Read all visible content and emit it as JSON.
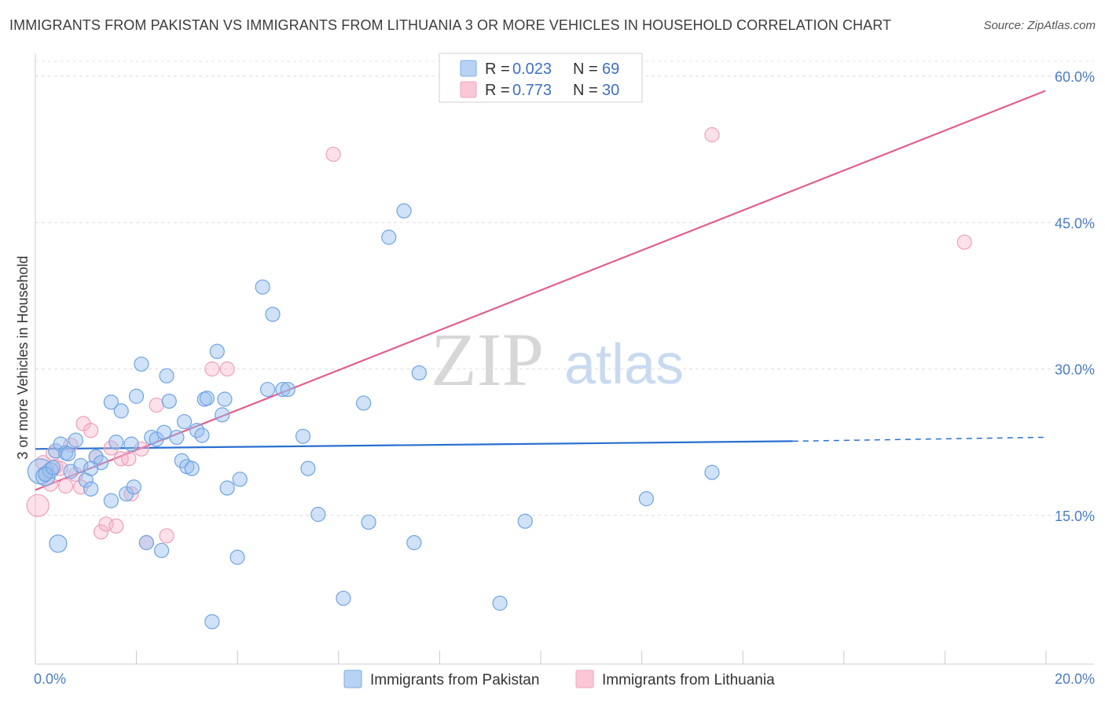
{
  "title": "IMMIGRANTS FROM PAKISTAN VS IMMIGRANTS FROM LITHUANIA 3 OR MORE VEHICLES IN HOUSEHOLD CORRELATION CHART",
  "source": "Source: ZipAtlas.com",
  "watermark": {
    "zip": "ZIP",
    "atlas": "atlas"
  },
  "legend_top": [
    {
      "r_label": "R = ",
      "r": "0.023",
      "n_label": "N = ",
      "n": "69"
    },
    {
      "r_label": "R = ",
      "r": "0.773",
      "n_label": "N = ",
      "n": "30"
    }
  ],
  "chart_data": {
    "type": "scatter",
    "title": "IMMIGRANTS FROM PAKISTAN VS IMMIGRANTS FROM LITHUANIA 3 OR MORE VEHICLES IN HOUSEHOLD CORRELATION CHART",
    "xlabel": "",
    "ylabel": "3 or more Vehicles in Household",
    "xlim": [
      0,
      20
    ],
    "ylim": [
      0,
      60
    ],
    "x_tick_labels": [
      "0.0%",
      "20.0%"
    ],
    "y_ticks": [
      15,
      30,
      45,
      60
    ],
    "y_tick_labels": [
      "15.0%",
      "30.0%",
      "45.0%",
      "60.0%"
    ],
    "legend_position": "bottom-center",
    "colors": {
      "pakistan": "#7aaee8",
      "lithuania": "#f2a5bd",
      "pakistan_line": "#2a6fd1",
      "lithuania_line": "#e0608f"
    },
    "series": [
      {
        "name": "Immigrants from Pakistan",
        "R": 0.023,
        "N": 69,
        "trend": {
          "x0": 0.0,
          "y0": 21.8,
          "x1": 15.0,
          "y1": 22.6,
          "dashed_to_x": 20.0,
          "dashed_to_y": 23.0
        },
        "points": [
          [
            0.1,
            19.5,
            16
          ],
          [
            0.2,
            19.0,
            12
          ],
          [
            0.3,
            19.6,
            10
          ],
          [
            0.4,
            21.6,
            9
          ],
          [
            0.5,
            22.3,
            9
          ],
          [
            0.6,
            21.4,
            9
          ],
          [
            0.7,
            19.5,
            9
          ],
          [
            0.8,
            22.7,
            9
          ],
          [
            0.9,
            20.1,
            9
          ],
          [
            1.0,
            18.6,
            9
          ],
          [
            1.1,
            17.7,
            9
          ],
          [
            1.2,
            21.0,
            9
          ],
          [
            1.3,
            20.4,
            9
          ],
          [
            1.5,
            16.5,
            9
          ],
          [
            1.5,
            26.6,
            9
          ],
          [
            1.6,
            22.5,
            9
          ],
          [
            1.7,
            25.7,
            9
          ],
          [
            1.8,
            17.2,
            9
          ],
          [
            1.9,
            22.3,
            9
          ],
          [
            1.95,
            17.9,
            9
          ],
          [
            2.0,
            27.2,
            9
          ],
          [
            2.1,
            30.5,
            9
          ],
          [
            2.3,
            23.0,
            9
          ],
          [
            2.4,
            22.8,
            9
          ],
          [
            2.5,
            11.4,
            9
          ],
          [
            2.55,
            23.5,
            9
          ],
          [
            2.6,
            29.3,
            9
          ],
          [
            2.65,
            26.7,
            9
          ],
          [
            2.8,
            23.0,
            9
          ],
          [
            2.9,
            20.6,
            9
          ],
          [
            2.95,
            24.6,
            9
          ],
          [
            3.0,
            20.0,
            9
          ],
          [
            3.1,
            19.8,
            9
          ],
          [
            3.2,
            23.7,
            9
          ],
          [
            3.3,
            23.2,
            9
          ],
          [
            3.35,
            26.9,
            9
          ],
          [
            3.4,
            27.0,
            9
          ],
          [
            3.5,
            4.1,
            9
          ],
          [
            3.6,
            31.8,
            9
          ],
          [
            3.7,
            25.3,
            9
          ],
          [
            3.75,
            26.9,
            9
          ],
          [
            3.8,
            17.8,
            9
          ],
          [
            4.0,
            10.7,
            9
          ],
          [
            4.05,
            18.7,
            9
          ],
          [
            4.5,
            38.4,
            9
          ],
          [
            4.6,
            27.9,
            9
          ],
          [
            4.7,
            35.6,
            9
          ],
          [
            4.9,
            27.9,
            9
          ],
          [
            5.0,
            27.9,
            9
          ],
          [
            5.3,
            23.1,
            9
          ],
          [
            5.4,
            19.8,
            9
          ],
          [
            5.6,
            15.1,
            9
          ],
          [
            6.1,
            6.5,
            9
          ],
          [
            6.6,
            14.3,
            9
          ],
          [
            6.5,
            26.5,
            9
          ],
          [
            7.0,
            43.5,
            9
          ],
          [
            7.3,
            46.2,
            9
          ],
          [
            7.5,
            12.2,
            9
          ],
          [
            7.6,
            29.6,
            9
          ],
          [
            9.2,
            6.0,
            9
          ],
          [
            9.7,
            14.4,
            9
          ],
          [
            12.1,
            16.7,
            9
          ],
          [
            13.4,
            19.4,
            9
          ],
          [
            0.45,
            12.1,
            11
          ],
          [
            0.2,
            19.2,
            9
          ],
          [
            0.35,
            19.9,
            9
          ],
          [
            1.1,
            19.8,
            9
          ],
          [
            2.2,
            12.2,
            9
          ],
          [
            0.65,
            21.3,
            9
          ]
        ]
      },
      {
        "name": "Immigrants from Lithuania",
        "R": 0.773,
        "N": 30,
        "trend": {
          "x0": 0.0,
          "y0": 17.6,
          "x1": 20.0,
          "y1": 58.5
        },
        "points": [
          [
            0.05,
            16.0,
            14
          ],
          [
            0.2,
            19.3,
            9
          ],
          [
            0.3,
            18.2,
            9
          ],
          [
            0.4,
            20.0,
            9
          ],
          [
            0.5,
            19.8,
            9
          ],
          [
            0.6,
            18.0,
            9
          ],
          [
            0.7,
            22.2,
            9
          ],
          [
            0.8,
            19.2,
            9
          ],
          [
            0.9,
            17.9,
            9
          ],
          [
            0.95,
            24.4,
            9
          ],
          [
            1.1,
            23.7,
            9
          ],
          [
            1.2,
            21.0,
            9
          ],
          [
            1.3,
            13.3,
            9
          ],
          [
            1.4,
            14.1,
            9
          ],
          [
            1.5,
            21.9,
            9
          ],
          [
            1.6,
            13.9,
            9
          ],
          [
            1.7,
            20.8,
            9
          ],
          [
            1.85,
            20.8,
            9
          ],
          [
            1.9,
            17.2,
            9
          ],
          [
            2.2,
            12.2,
            9
          ],
          [
            2.1,
            21.8,
            9
          ],
          [
            2.4,
            26.3,
            9
          ],
          [
            2.6,
            12.9,
            9
          ],
          [
            3.5,
            30.0,
            9
          ],
          [
            3.8,
            30.0,
            9
          ],
          [
            5.9,
            52.0,
            9
          ],
          [
            13.4,
            54.0,
            9
          ],
          [
            18.4,
            43.0,
            9
          ],
          [
            0.35,
            21.3,
            9
          ],
          [
            0.15,
            20.4,
            9
          ]
        ]
      }
    ]
  }
}
